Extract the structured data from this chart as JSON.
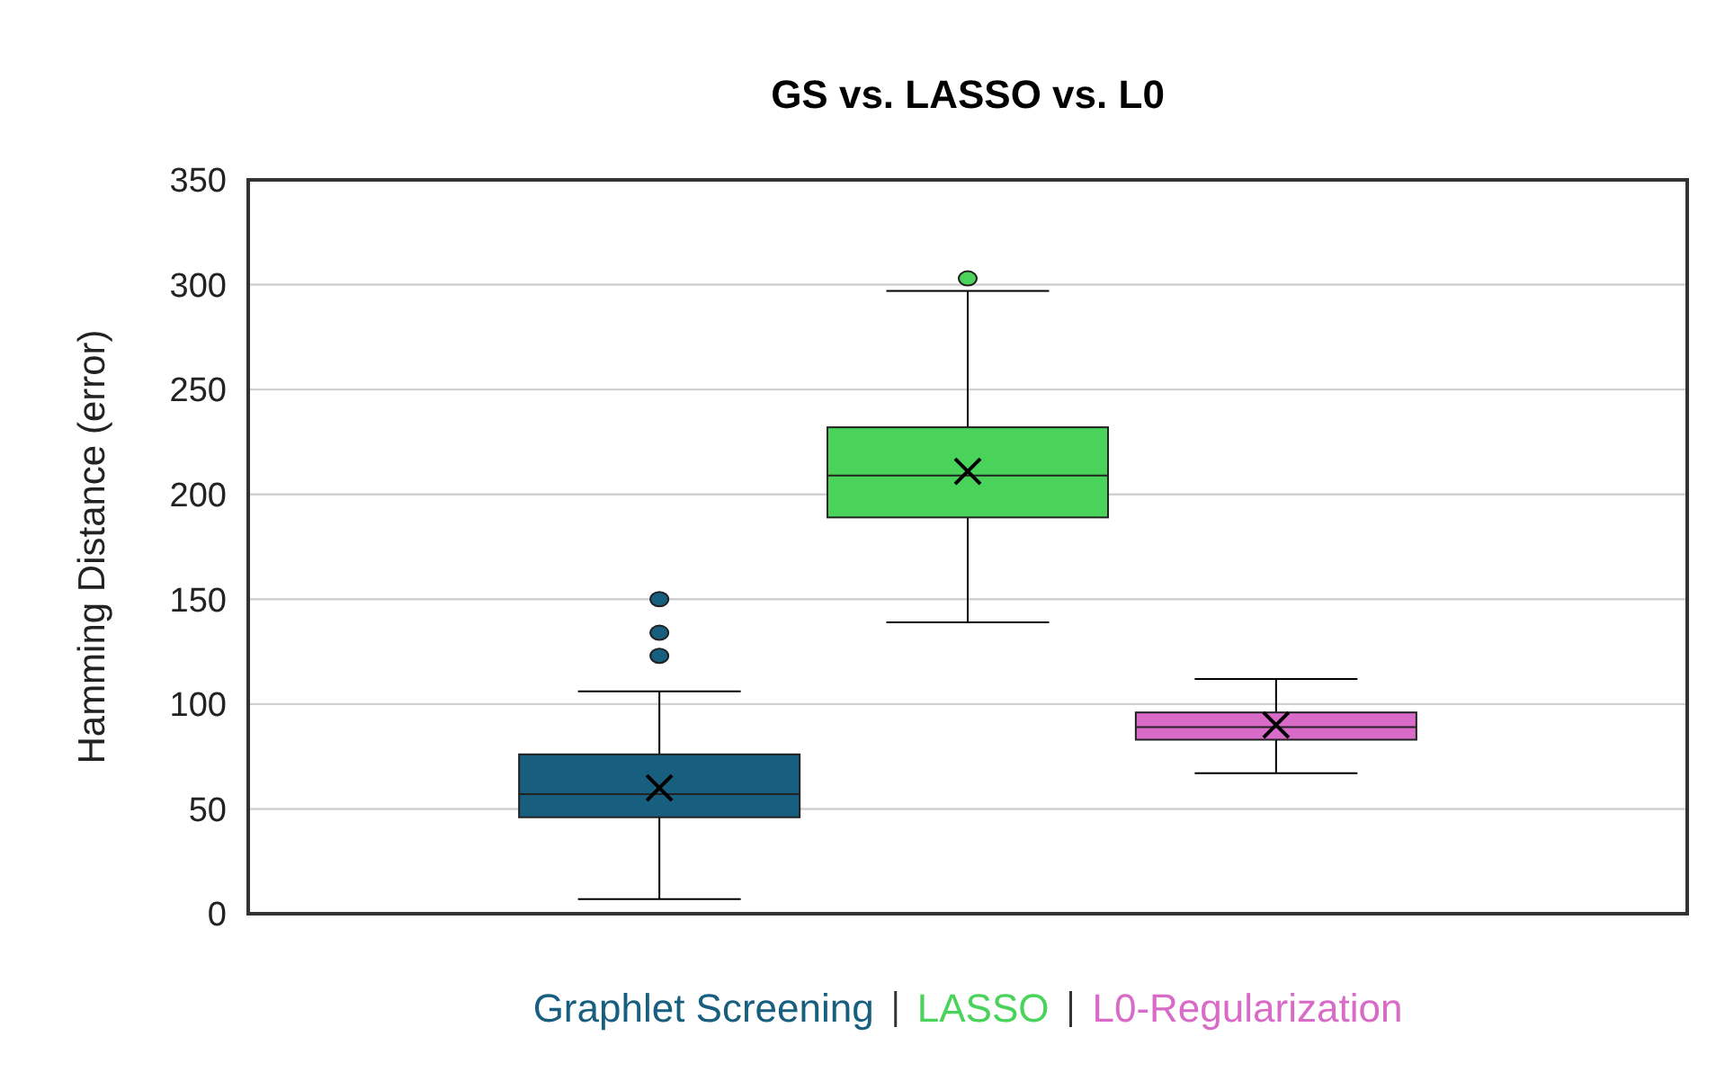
{
  "chart_data": {
    "type": "box",
    "title": "GS vs. LASSO vs. L0",
    "ylabel": "Hamming Distance (error)",
    "categories": [
      null
    ],
    "series": [
      {
        "name": "Graphlet Screening",
        "color": "#175e7f",
        "boxes": [
          {
            "low": 7,
            "q1": 46,
            "median": 57,
            "q3": 76,
            "high": 106,
            "mean": 60,
            "outliers": [
              123,
              134,
              150
            ]
          }
        ]
      },
      {
        "name": "LASSO",
        "color": "#49d35b",
        "boxes": [
          {
            "low": 139,
            "q1": 189,
            "median": 209,
            "q3": 232,
            "high": 297,
            "mean": 211,
            "outliers": [
              303
            ]
          }
        ]
      },
      {
        "name": "L0-Regularization",
        "color": "#d86bc7",
        "boxes": [
          {
            "low": 67,
            "q1": 83,
            "median": 89,
            "q3": 96,
            "high": 112,
            "mean": 90
          }
        ]
      }
    ],
    "ylim": [
      0,
      350
    ],
    "yticks": [
      0,
      50,
      100,
      150,
      200,
      250,
      300,
      350
    ],
    "grid": "y",
    "legend": "bottom"
  }
}
